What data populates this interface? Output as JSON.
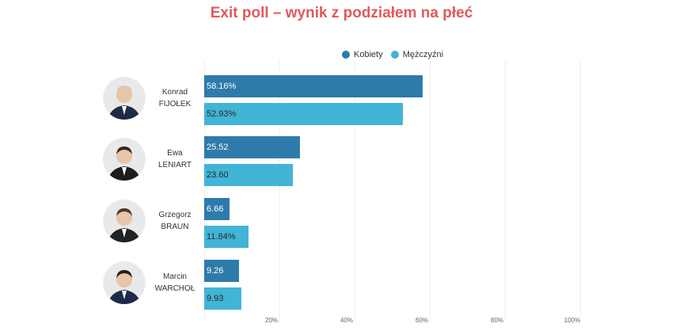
{
  "chart_data": {
    "type": "bar",
    "orientation": "horizontal",
    "title": "Exit poll – wynik z podziałem na płeć",
    "legend_position": "top-right",
    "grid": true,
    "xlim": [
      0,
      100
    ],
    "ticks": [
      "20%",
      "40%",
      "60%",
      "80%",
      "100%"
    ],
    "tick_values": [
      20,
      40,
      60,
      80,
      100
    ],
    "series": [
      {
        "name": "Kobiety",
        "color": "#2e7bab"
      },
      {
        "name": "Mężczyźni",
        "color": "#42b4d6"
      }
    ],
    "candidates": [
      {
        "first": "Konrad",
        "last": "FIJOŁEK",
        "values": [
          58.16,
          52.93
        ],
        "labels": [
          "58.16%",
          "52.93%"
        ]
      },
      {
        "first": "Ewa",
        "last": "LENIART",
        "values": [
          25.52,
          23.6
        ],
        "labels": [
          "25.52",
          "23.60"
        ]
      },
      {
        "first": "Grzegorz",
        "last": "BRAUN",
        "values": [
          6.66,
          11.84
        ],
        "labels": [
          "6.66",
          "11.84%"
        ]
      },
      {
        "first": "Marcin",
        "last": "WARCHOŁ",
        "values": [
          9.26,
          9.93
        ],
        "labels": [
          "9.26",
          "9.93"
        ]
      }
    ]
  }
}
